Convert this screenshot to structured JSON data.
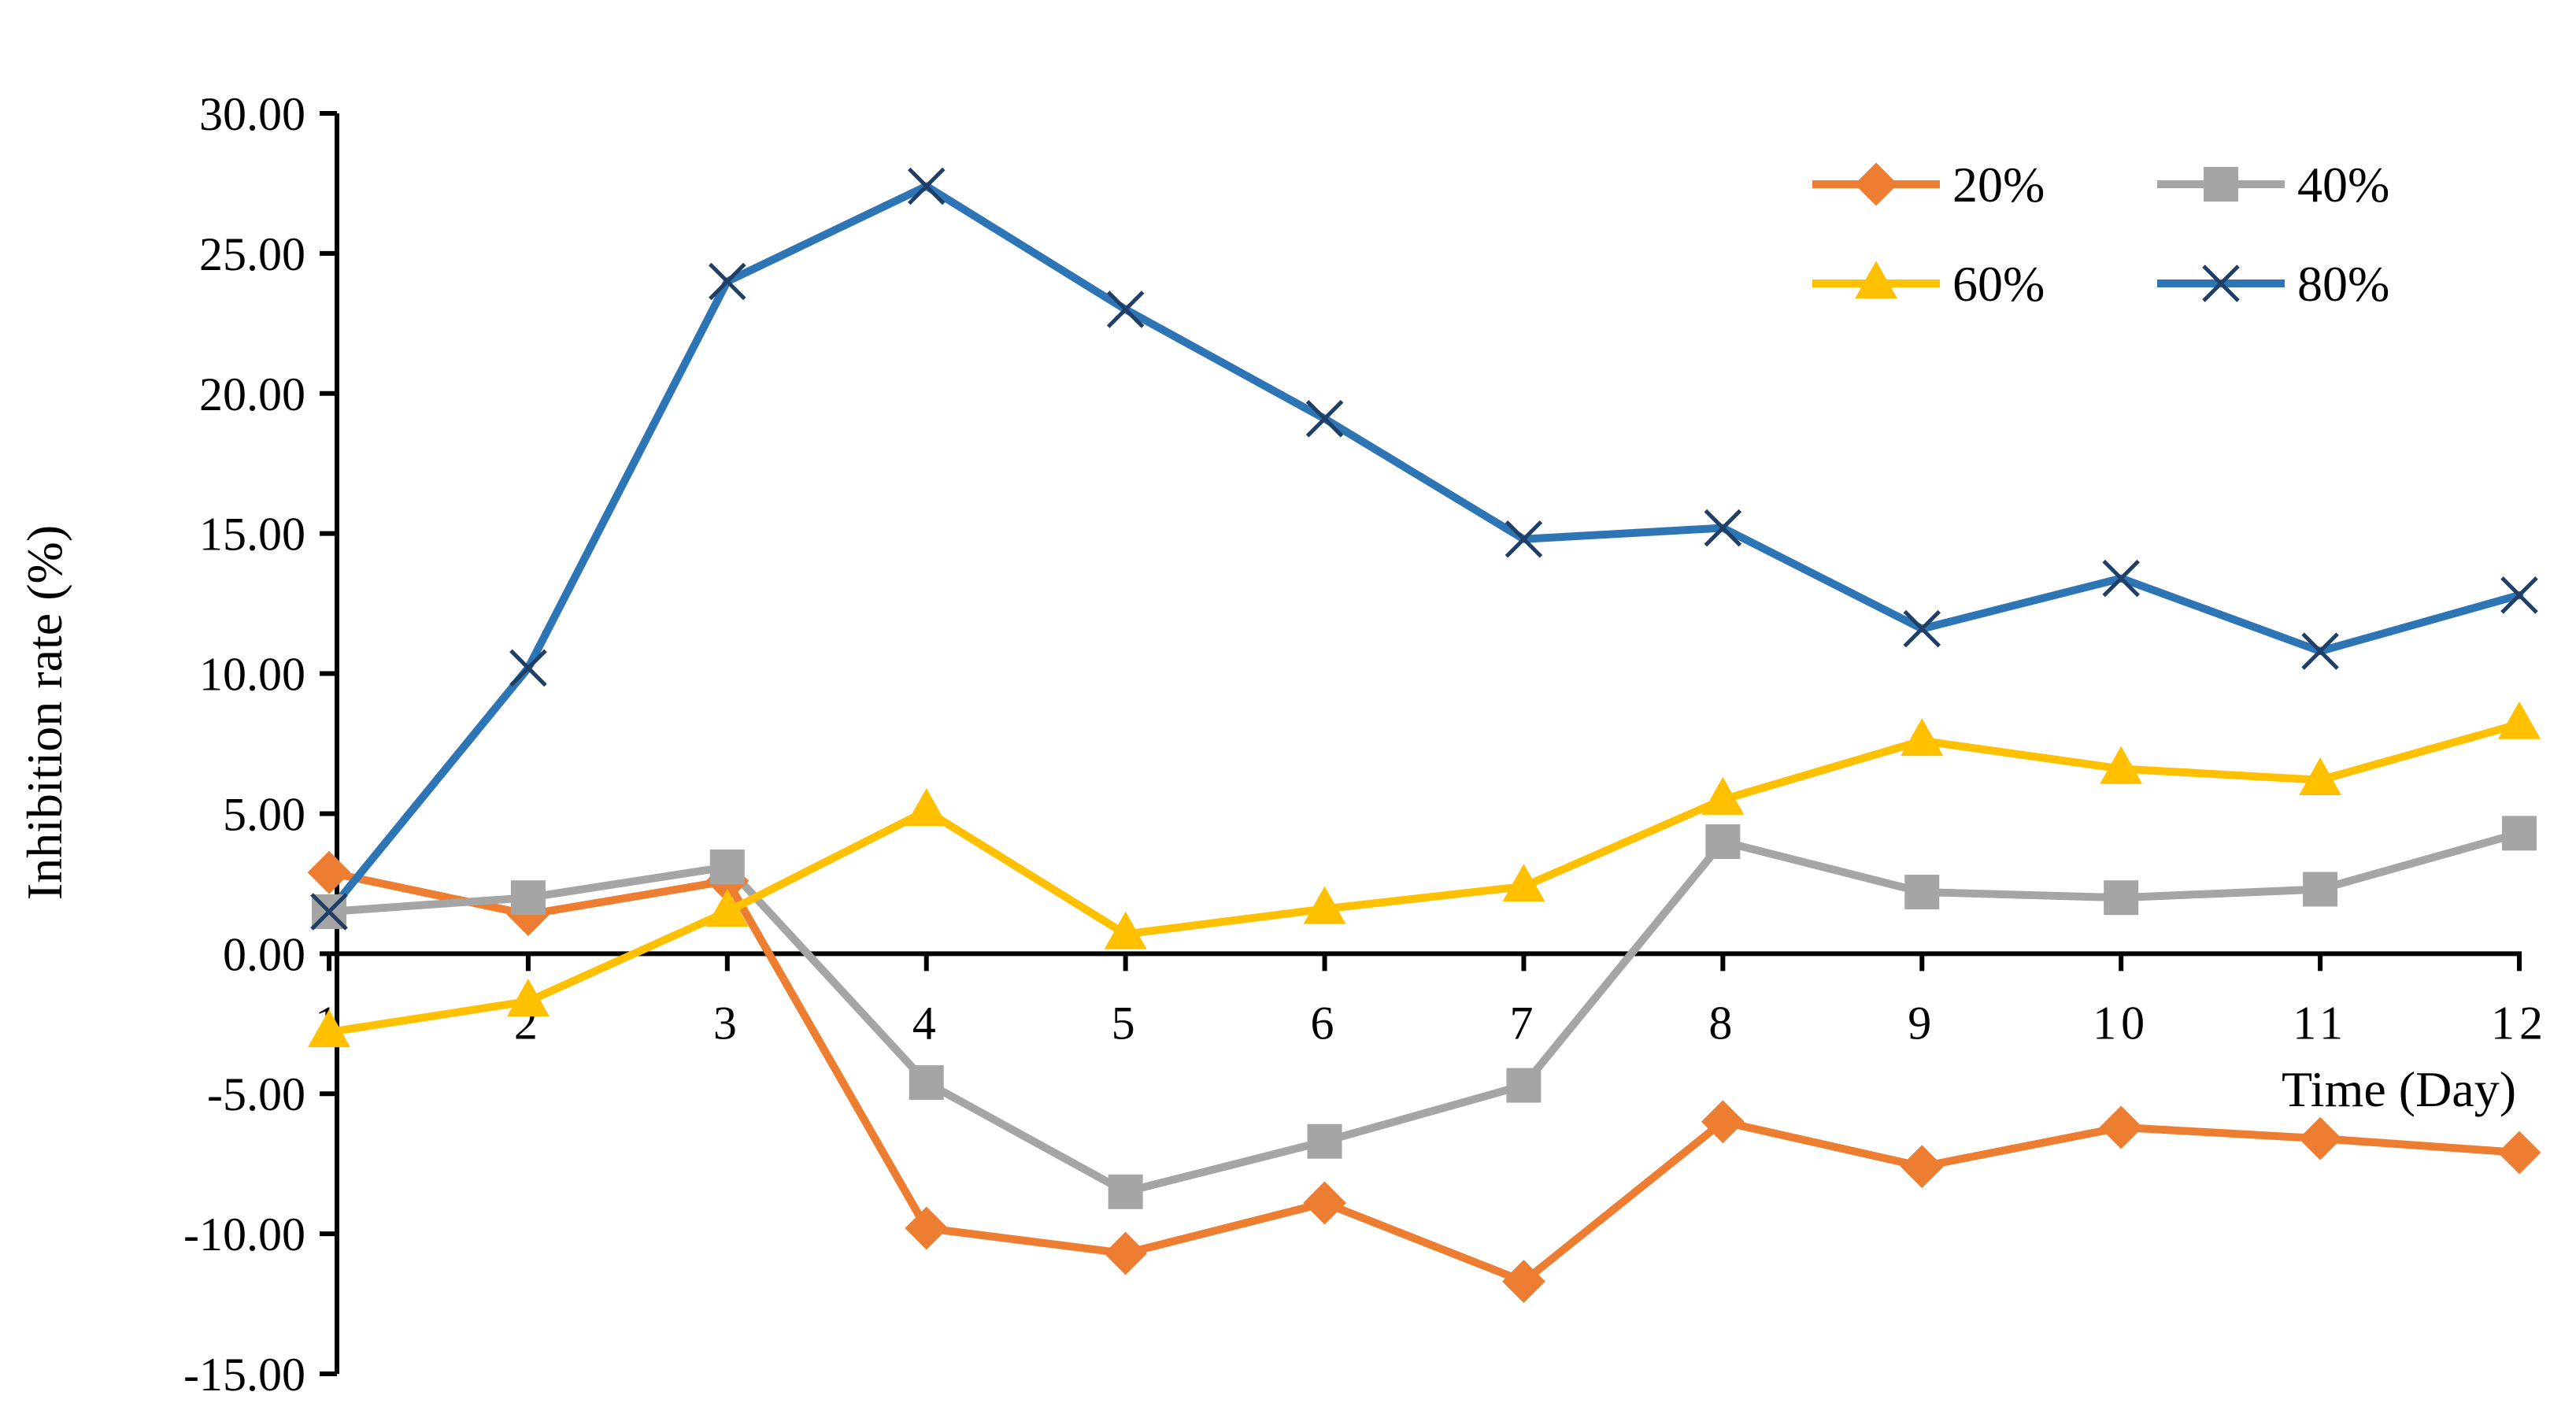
{
  "chart_data": {
    "type": "line",
    "xlabel": "Time (Day)",
    "ylabel": "Inhibition rate (%)",
    "x": [
      1,
      2,
      3,
      4,
      5,
      6,
      7,
      8,
      9,
      10,
      11,
      12
    ],
    "x_tick_labels": [
      "1",
      "2",
      "3",
      "4",
      "5",
      "6",
      "7",
      "8",
      "9",
      "10",
      "11",
      "12"
    ],
    "ylim": [
      -15,
      30
    ],
    "y_ticks": [
      30,
      25,
      20,
      15,
      10,
      5,
      0,
      -5,
      -10,
      -15
    ],
    "y_tick_labels": [
      "30.00",
      "25.00",
      "20.00",
      "15.00",
      "10.00",
      "5.00",
      "0.00",
      "-5.00",
      "-10.00",
      "-15.00"
    ],
    "grid": false,
    "legend": "top-right",
    "series": [
      {
        "name": "20%",
        "color": "#ED7D31",
        "marker": "diamond",
        "values": [
          2.9,
          1.4,
          2.6,
          -9.8,
          -10.7,
          -8.9,
          -11.7,
          -6.0,
          -7.6,
          -6.2,
          -6.6,
          -7.1
        ]
      },
      {
        "name": "40%",
        "color": "#A5A5A5",
        "marker": "square",
        "values": [
          1.5,
          2.0,
          3.1,
          -4.6,
          -8.5,
          -6.7,
          -4.7,
          4.0,
          2.2,
          2.0,
          2.3,
          4.3
        ]
      },
      {
        "name": "60%",
        "color": "#FFC000",
        "marker": "triangle",
        "values": [
          -2.8,
          -1.7,
          1.5,
          5.1,
          0.7,
          1.6,
          2.4,
          5.5,
          7.6,
          6.6,
          6.2,
          8.2
        ]
      },
      {
        "name": "80%",
        "color": "#2E75B6",
        "marker": "x",
        "values": [
          1.5,
          10.2,
          24.0,
          27.4,
          23.0,
          19.1,
          14.8,
          15.2,
          11.6,
          13.4,
          10.8,
          12.8
        ]
      }
    ]
  }
}
